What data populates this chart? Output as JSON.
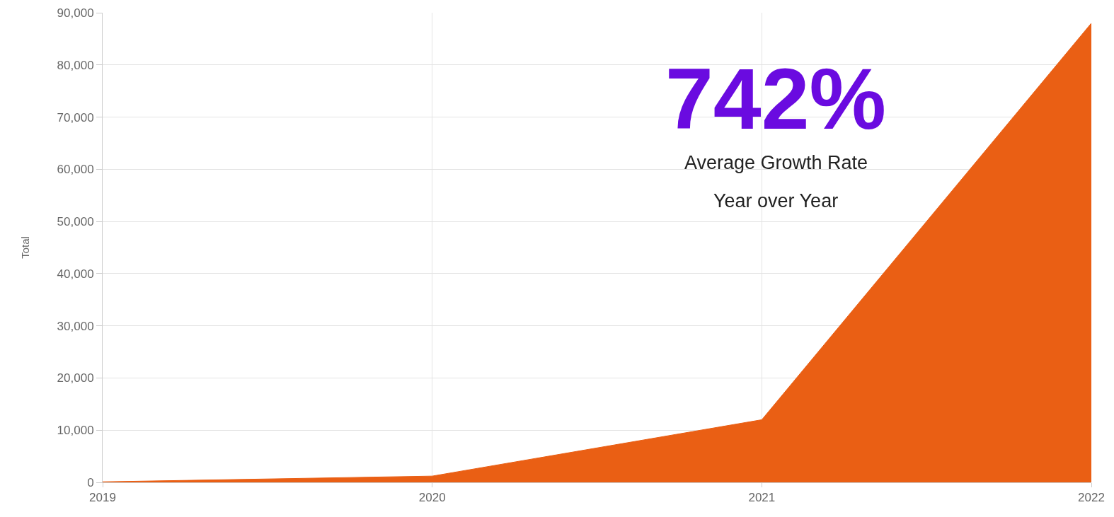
{
  "chart_data": {
    "type": "area",
    "x": [
      2019,
      2020,
      2021,
      2022
    ],
    "xlim": [
      2019,
      2022
    ],
    "xticks": [
      2019,
      2020,
      2021,
      2022
    ],
    "series": [
      {
        "color": "#ea5f14",
        "values": [
          100,
          1200,
          12000,
          88000
        ]
      }
    ],
    "ylim": [
      0,
      90000
    ],
    "yticks": [
      {
        "value": 0,
        "label": "0"
      },
      {
        "value": 10000,
        "label": "10,000"
      },
      {
        "value": 20000,
        "label": "20,000"
      },
      {
        "value": 30000,
        "label": "30,000"
      },
      {
        "value": 40000,
        "label": "40,000"
      },
      {
        "value": 50000,
        "label": "50,000"
      },
      {
        "value": 60000,
        "label": "60,000"
      },
      {
        "value": 70000,
        "label": "70,000"
      },
      {
        "value": 80000,
        "label": "80,000"
      },
      {
        "value": 90000,
        "label": "90,000"
      }
    ],
    "ylabel": "Total",
    "grid": true,
    "annotations": [
      "742%",
      "Average Growth Rate",
      "Year over Year"
    ]
  }
}
